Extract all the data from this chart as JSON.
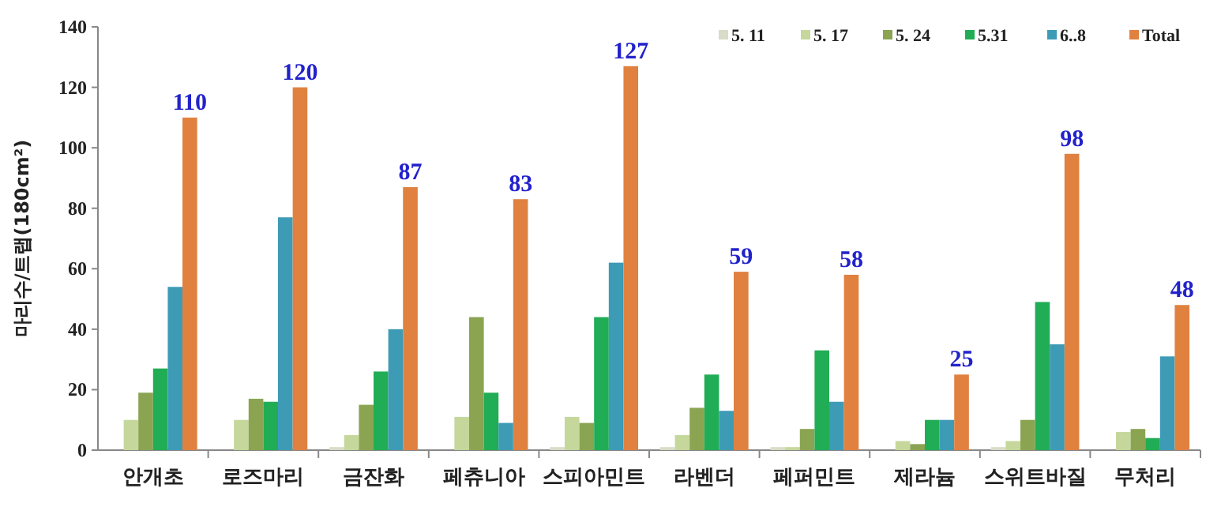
{
  "chart_data": {
    "type": "bar",
    "ylabel": "마리수/트랩(180cm²)",
    "categories": [
      "안개초",
      "로즈마리",
      "금잔화",
      "페츄니아",
      "스피아민트",
      "라벤더",
      "페퍼민트",
      "제라늄",
      "스위트바질",
      "무처리"
    ],
    "ylim": [
      0,
      140
    ],
    "yticks": [
      0,
      20,
      40,
      60,
      80,
      100,
      120,
      140
    ],
    "grid": false,
    "legend": "top right",
    "series": [
      {
        "name": "5. 11",
        "color": "#d8dcc8",
        "values": [
          0,
          0,
          1,
          0,
          1,
          1,
          1,
          0,
          1,
          0
        ]
      },
      {
        "name": "5. 17",
        "color": "#c6d79c",
        "values": [
          10,
          10,
          5,
          11,
          11,
          5,
          1,
          3,
          3,
          6
        ]
      },
      {
        "name": "5. 24",
        "color": "#8aa452",
        "values": [
          19,
          17,
          15,
          44,
          9,
          14,
          7,
          2,
          10,
          7
        ]
      },
      {
        "name": "5.31",
        "color": "#20ad55",
        "values": [
          27,
          16,
          26,
          19,
          44,
          25,
          33,
          10,
          49,
          4
        ]
      },
      {
        "name": "6..8",
        "color": "#3e9bb6",
        "values": [
          54,
          77,
          40,
          9,
          62,
          13,
          16,
          10,
          35,
          31
        ]
      },
      {
        "name": "Total",
        "color": "#e0813f",
        "values": [
          110,
          120,
          87,
          83,
          127,
          59,
          58,
          25,
          98,
          48
        ],
        "value_labels": [
          "110",
          "120",
          "87",
          "83",
          "127",
          "59",
          "58",
          "25",
          "98",
          "48"
        ]
      }
    ]
  }
}
